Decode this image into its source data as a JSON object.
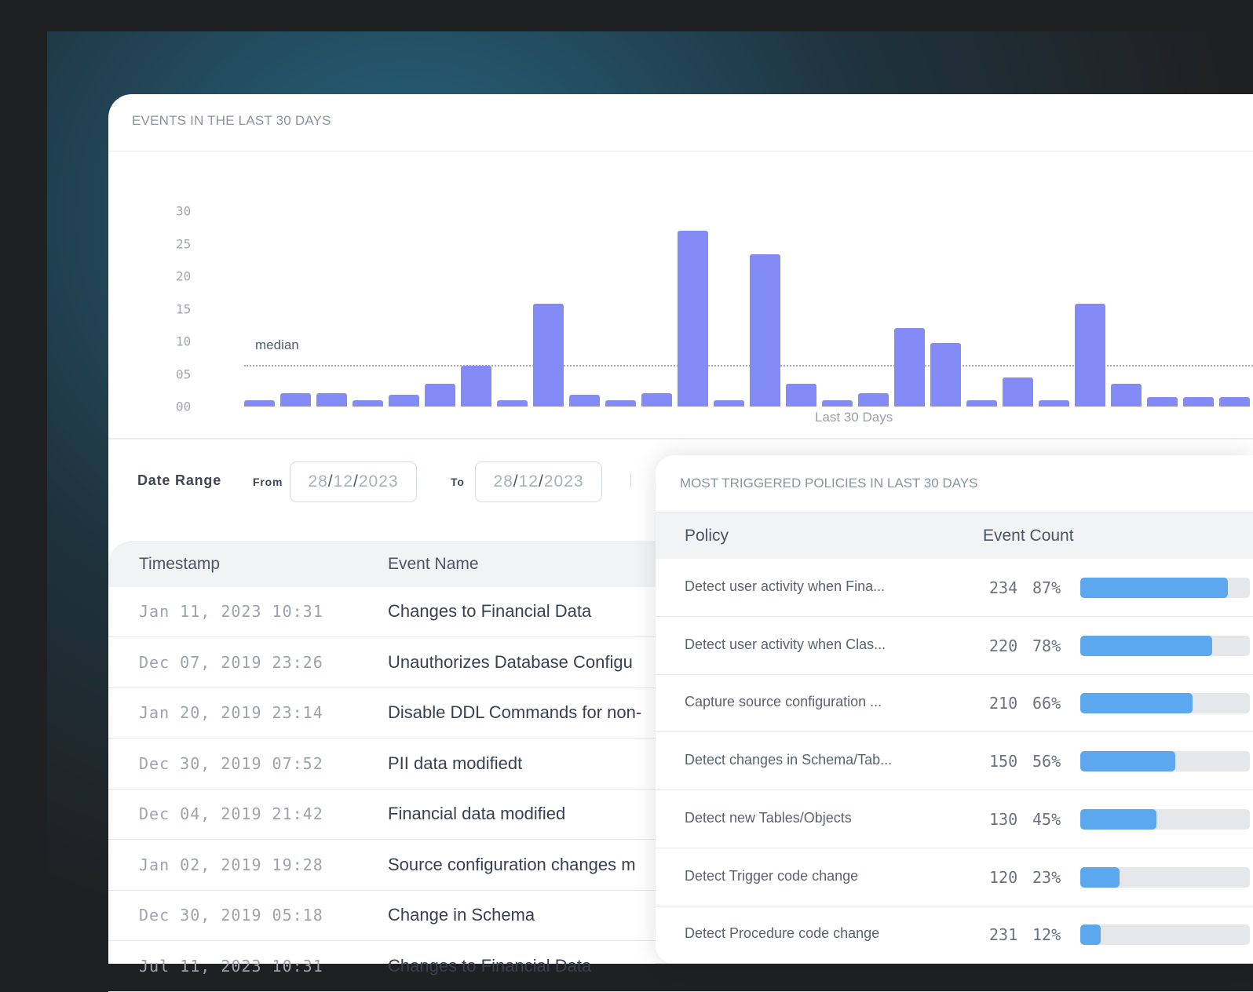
{
  "events_card": {
    "title": "EVENTS IN THE LAST 30 DAYS"
  },
  "chart_data": {
    "type": "bar",
    "title": "EVENTS IN THE LAST 30 DAYS",
    "xlabel": "Last 30 Days",
    "ylabel": "",
    "ylim": [
      0,
      30
    ],
    "yticks": [
      "00",
      "05",
      "10",
      "15",
      "20",
      "25",
      "30"
    ],
    "values": [
      1,
      2,
      2,
      1,
      1.8,
      3.5,
      6.3,
      1,
      15.8,
      1.8,
      1,
      2,
      27,
      1,
      23.4,
      3.5,
      1,
      2,
      12,
      9.8,
      1,
      4.5,
      1,
      15.8,
      3.5,
      1.5,
      1.5,
      1.5
    ],
    "median": {
      "label": "median",
      "value": 6.4
    },
    "grid": false,
    "color": "#838bf7"
  },
  "date_range": {
    "label": "Date Range",
    "from_label": "From",
    "from_value": {
      "d": "28",
      "m": "12",
      "y": "2023"
    },
    "to_label": "To",
    "to_value": {
      "d": "28",
      "m": "12",
      "y": "2023"
    }
  },
  "events_table": {
    "headers": [
      "Timestamp",
      "Event Name"
    ],
    "rows": [
      {
        "ts": "Jan 11, 2023 10:31",
        "name": "Changes to Financial Data"
      },
      {
        "ts": "Dec 07, 2019 23:26",
        "name": "Unauthorizes Database Configu"
      },
      {
        "ts": "Jan 20, 2019 23:14",
        "name": "Disable DDL Commands for non-"
      },
      {
        "ts": "Dec 30, 2019 07:52",
        "name": "PII data modifiedt"
      },
      {
        "ts": "Dec 04, 2019 21:42",
        "name": "Financial data modified"
      },
      {
        "ts": "Jan 02, 2019 19:28",
        "name": "Source configuration changes m"
      },
      {
        "ts": "Dec 30, 2019 05:18",
        "name": "Change in Schema"
      },
      {
        "ts": "Jul 11, 2023 10:31",
        "name": "Changes to Financial Data"
      }
    ]
  },
  "policies": {
    "title": "MOST TRIGGERED POLICIES IN LAST 30 DAYS",
    "headers": [
      "Policy",
      "Event Count"
    ],
    "rows": [
      {
        "name": "Detect user activity when Fina...",
        "count": "234",
        "pct": "87%",
        "fraction": 0.87
      },
      {
        "name": "Detect user activity when Clas...",
        "count": "220",
        "pct": "78%",
        "fraction": 0.78
      },
      {
        "name": "Capture source configuration ...",
        "count": "210",
        "pct": "66%",
        "fraction": 0.66
      },
      {
        "name": "Detect changes in Schema/Tab...",
        "count": "150",
        "pct": "56%",
        "fraction": 0.56
      },
      {
        "name": "Detect new Tables/Objects",
        "count": "130",
        "pct": "45%",
        "fraction": 0.45
      },
      {
        "name": "Detect Trigger code change",
        "count": "120",
        "pct": "23%",
        "fraction": 0.23
      },
      {
        "name": "Detect Procedure code change",
        "count": "231",
        "pct": "12%",
        "fraction": 0.12
      }
    ]
  }
}
